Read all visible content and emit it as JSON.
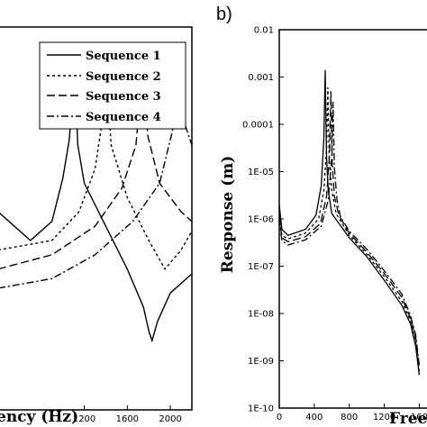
{
  "chart_data": [
    {
      "type": "line",
      "panel_label": "",
      "xlabel": "ency (Hz)",
      "ylabel": "",
      "xlim": [
        400,
        2200
      ],
      "x_tick_labels": [
        "1200",
        "1600",
        "2000"
      ],
      "legend_placement": "top-right",
      "series": [
        {
          "name": "Sequence 1",
          "style": "solid",
          "points": [
            [
              400,
              -5.9
            ],
            [
              700,
              -6.2
            ],
            [
              900,
              -6.0
            ],
            [
              1000,
              -5.55
            ],
            [
              1060,
              -5.15
            ],
            [
              1100,
              -4.6
            ],
            [
              1110,
              -4.4
            ],
            [
              1140,
              -5.2
            ],
            [
              1200,
              -5.6
            ],
            [
              1400,
              -6.05
            ],
            [
              1600,
              -6.5
            ],
            [
              1750,
              -6.9
            ],
            [
              1800,
              -7.15
            ],
            [
              1830,
              -7.25
            ],
            [
              1880,
              -7.05
            ],
            [
              2000,
              -6.75
            ],
            [
              2200,
              -6.55
            ]
          ]
        },
        {
          "name": "Sequence 2",
          "style": "dashed",
          "points": [
            [
              400,
              -6.3
            ],
            [
              900,
              -6.2
            ],
            [
              1150,
              -5.9
            ],
            [
              1300,
              -5.45
            ],
            [
              1380,
              -4.85
            ],
            [
              1410,
              -4.5
            ],
            [
              1450,
              -5.2
            ],
            [
              1600,
              -5.75
            ],
            [
              1800,
              -6.2
            ],
            [
              1950,
              -6.5
            ],
            [
              2100,
              -6.3
            ],
            [
              2200,
              -6.1
            ]
          ]
        },
        {
          "name": "Sequence 3",
          "style": "longdash",
          "points": [
            [
              400,
              -6.5
            ],
            [
              900,
              -6.35
            ],
            [
              1300,
              -6.05
            ],
            [
              1550,
              -5.65
            ],
            [
              1680,
              -5.2
            ],
            [
              1730,
              -4.55
            ],
            [
              1750,
              -4.35
            ],
            [
              1790,
              -5.1
            ],
            [
              1900,
              -5.6
            ],
            [
              2100,
              -5.9
            ],
            [
              2200,
              -6.0
            ]
          ]
        },
        {
          "name": "Sequence 4",
          "style": "dashdot",
          "points": [
            [
              400,
              -6.7
            ],
            [
              900,
              -6.6
            ],
            [
              1300,
              -6.35
            ],
            [
              1650,
              -6.0
            ],
            [
              1900,
              -5.6
            ],
            [
              2020,
              -5.05
            ],
            [
              2060,
              -4.5
            ],
            [
              2075,
              -4.4
            ],
            [
              2110,
              -4.9
            ],
            [
              2200,
              -5.2
            ]
          ]
        }
      ]
    },
    {
      "type": "line",
      "panel_label": "b)",
      "xlabel": "Free",
      "ylabel": "Response (m)",
      "yscale": "log",
      "ylim": [
        1e-10,
        0.01
      ],
      "y_tick_labels": [
        "0.01",
        "0.001",
        "0.0001",
        "1E-05",
        "1E-06",
        "1E-07",
        "1E-08",
        "1E-09",
        "1E-10"
      ],
      "xlim": [
        0,
        1750
      ],
      "x_tick_labels": [
        "0",
        "400",
        "800",
        "1200",
        "160"
      ],
      "series": [
        {
          "name": "Sequence 1",
          "style": "solid",
          "points": [
            [
              0,
              2e-06
            ],
            [
              30,
              6e-07
            ],
            [
              100,
              4.5e-07
            ],
            [
              300,
              6e-07
            ],
            [
              420,
              1.2e-06
            ],
            [
              480,
              5e-06
            ],
            [
              510,
              5e-05
            ],
            [
              525,
              0.0014
            ],
            [
              540,
              2e-05
            ],
            [
              560,
              4e-06
            ],
            [
              600,
              1.3e-06
            ],
            [
              800,
              4e-07
            ],
            [
              1000,
              1.6e-07
            ],
            [
              1200,
              5e-08
            ],
            [
              1400,
              1.5e-08
            ],
            [
              1500,
              6e-09
            ],
            [
              1560,
              2e-09
            ],
            [
              1600,
              5e-10
            ]
          ]
        },
        {
          "name": "Sequence 2",
          "style": "dashed",
          "points": [
            [
              0,
              1.5e-06
            ],
            [
              30,
              4.5e-07
            ],
            [
              100,
              3.8e-07
            ],
            [
              300,
              5e-07
            ],
            [
              450,
              1e-06
            ],
            [
              510,
              4e-06
            ],
            [
              540,
              3e-05
            ],
            [
              555,
              0.0006
            ],
            [
              570,
              2e-05
            ],
            [
              600,
              4e-06
            ],
            [
              650,
              1.3e-06
            ],
            [
              800,
              4.5e-07
            ],
            [
              1000,
              1.8e-07
            ],
            [
              1200,
              6e-08
            ],
            [
              1400,
              1.8e-08
            ],
            [
              1500,
              7e-09
            ],
            [
              1560,
              2.5e-09
            ],
            [
              1600,
              6e-10
            ]
          ]
        },
        {
          "name": "Sequence 3",
          "style": "longdash",
          "points": [
            [
              0,
              1.2e-06
            ],
            [
              30,
              4e-07
            ],
            [
              100,
              3.3e-07
            ],
            [
              300,
              4.2e-07
            ],
            [
              470,
              8e-07
            ],
            [
              540,
              3e-06
            ],
            [
              575,
              2.5e-05
            ],
            [
              590,
              0.0005
            ],
            [
              605,
              1.5e-05
            ],
            [
              630,
              3e-06
            ],
            [
              680,
              1.2e-06
            ],
            [
              800,
              5e-07
            ],
            [
              1000,
              2e-07
            ],
            [
              1200,
              7e-08
            ],
            [
              1400,
              2.2e-08
            ],
            [
              1500,
              8e-09
            ],
            [
              1560,
              3e-09
            ],
            [
              1600,
              7e-10
            ]
          ]
        },
        {
          "name": "Sequence 4",
          "style": "dashdot",
          "points": [
            [
              0,
              1e-06
            ],
            [
              30,
              3.5e-07
            ],
            [
              100,
              2.8e-07
            ],
            [
              300,
              3.6e-07
            ],
            [
              480,
              7e-07
            ],
            [
              560,
              2.5e-06
            ],
            [
              600,
              2e-05
            ],
            [
              615,
              0.0003
            ],
            [
              630,
              1.2e-05
            ],
            [
              660,
              2.5e-06
            ],
            [
              700,
              1.1e-06
            ],
            [
              800,
              5.5e-07
            ],
            [
              1000,
              2.3e-07
            ],
            [
              1200,
              8e-08
            ],
            [
              1400,
              2.6e-08
            ],
            [
              1500,
              9e-09
            ],
            [
              1560,
              3.5e-09
            ],
            [
              1600,
              8e-10
            ]
          ]
        }
      ]
    }
  ]
}
